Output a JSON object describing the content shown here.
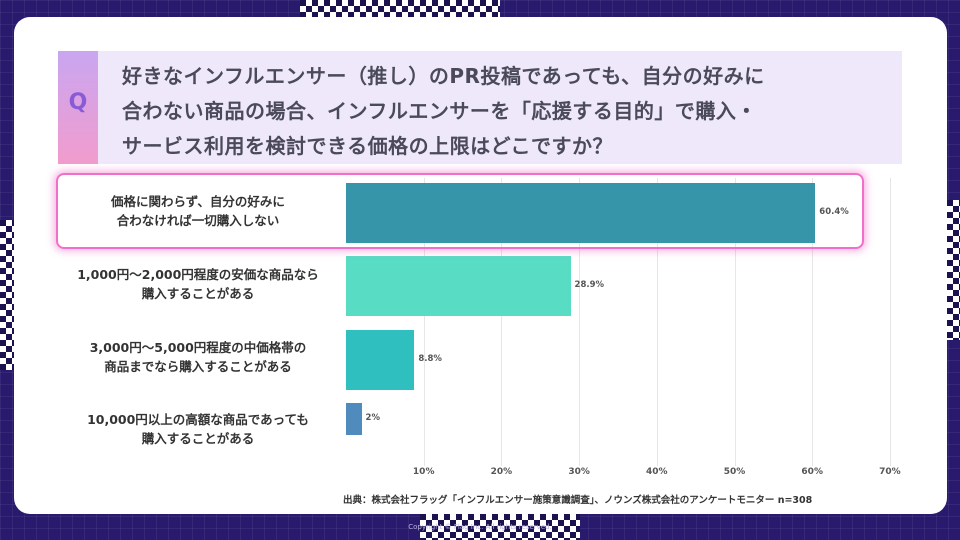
{
  "question": {
    "badge": "Q",
    "lines": [
      "好きなインフルエンサー（推し）のPR投稿であっても、自分の好みに",
      "合わない商品の場合、インフルエンサーを「応援する目的」で購入・",
      "サービス利用を検討できる価格の上限はどこですか？"
    ]
  },
  "colors": {
    "bar1": "#3695a8",
    "bar2": "#58dcc4",
    "bar3": "#2fbfbf",
    "bar4": "#4f8bbc",
    "highlight": "#f06fc9"
  },
  "chart_data": {
    "type": "bar",
    "orientation": "horizontal",
    "categories": [
      [
        "価格に関わらず、自分の好みに",
        "合わなければ一切購入しない"
      ],
      [
        "1,000円～2,000円程度の安価な商品なら",
        "購入することがある"
      ],
      [
        "3,000円～5,000円程度の中価格帯の",
        "商品までなら購入することがある"
      ],
      [
        "10,000円以上の高額な商品であっても",
        "購入することがある"
      ]
    ],
    "values": [
      60.4,
      28.9,
      8.8,
      2
    ],
    "value_labels": [
      "60.4%",
      "28.9%",
      "8.8%",
      "2%"
    ],
    "xlim": [
      0,
      70
    ],
    "xticks": [
      "10%",
      "20%",
      "30%",
      "40%",
      "50%",
      "60%",
      "70%"
    ],
    "highlighted_category": 0,
    "grid": true
  },
  "source": "出典：株式会社フラッグ「インフルエンサー施策意識調査」、ノウンズ株式会社のアンケートモニター n=308",
  "copyright": "Copyright © Flag Inc. All rights reserved."
}
